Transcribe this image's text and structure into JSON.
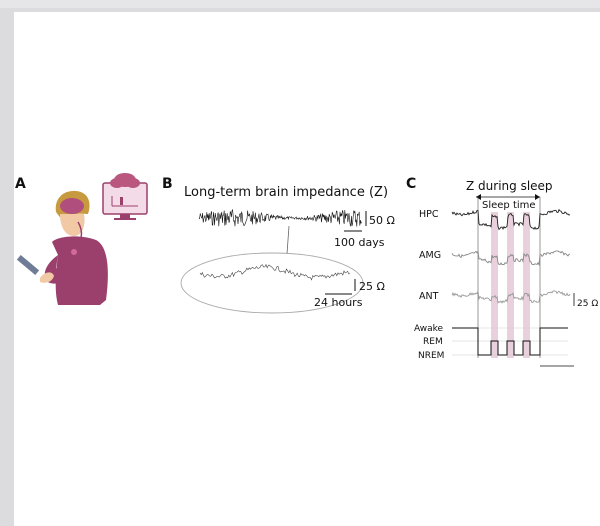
{
  "panels": {
    "a": {
      "letter": "A"
    },
    "b": {
      "letter": "B",
      "title": "Long-term brain impedance (Z)",
      "scale_top_value": "50 Ω",
      "scale_top_time": "100 days",
      "scale_zoom_value": "25 Ω",
      "scale_zoom_time": "24 hours"
    },
    "c": {
      "letter": "C",
      "title": "Z during sleep",
      "sleep_time": "Sleep time",
      "regions": [
        "HPC",
        "AMG",
        "ANT"
      ],
      "scale_value": "25 Ω",
      "states": [
        "Awake",
        "REM",
        "NREM"
      ]
    }
  },
  "colors": {
    "accent": "#9b3f6c",
    "shade": "#e8c8d8",
    "trace": "#222222",
    "gray_trace": "#9a9a9a"
  }
}
